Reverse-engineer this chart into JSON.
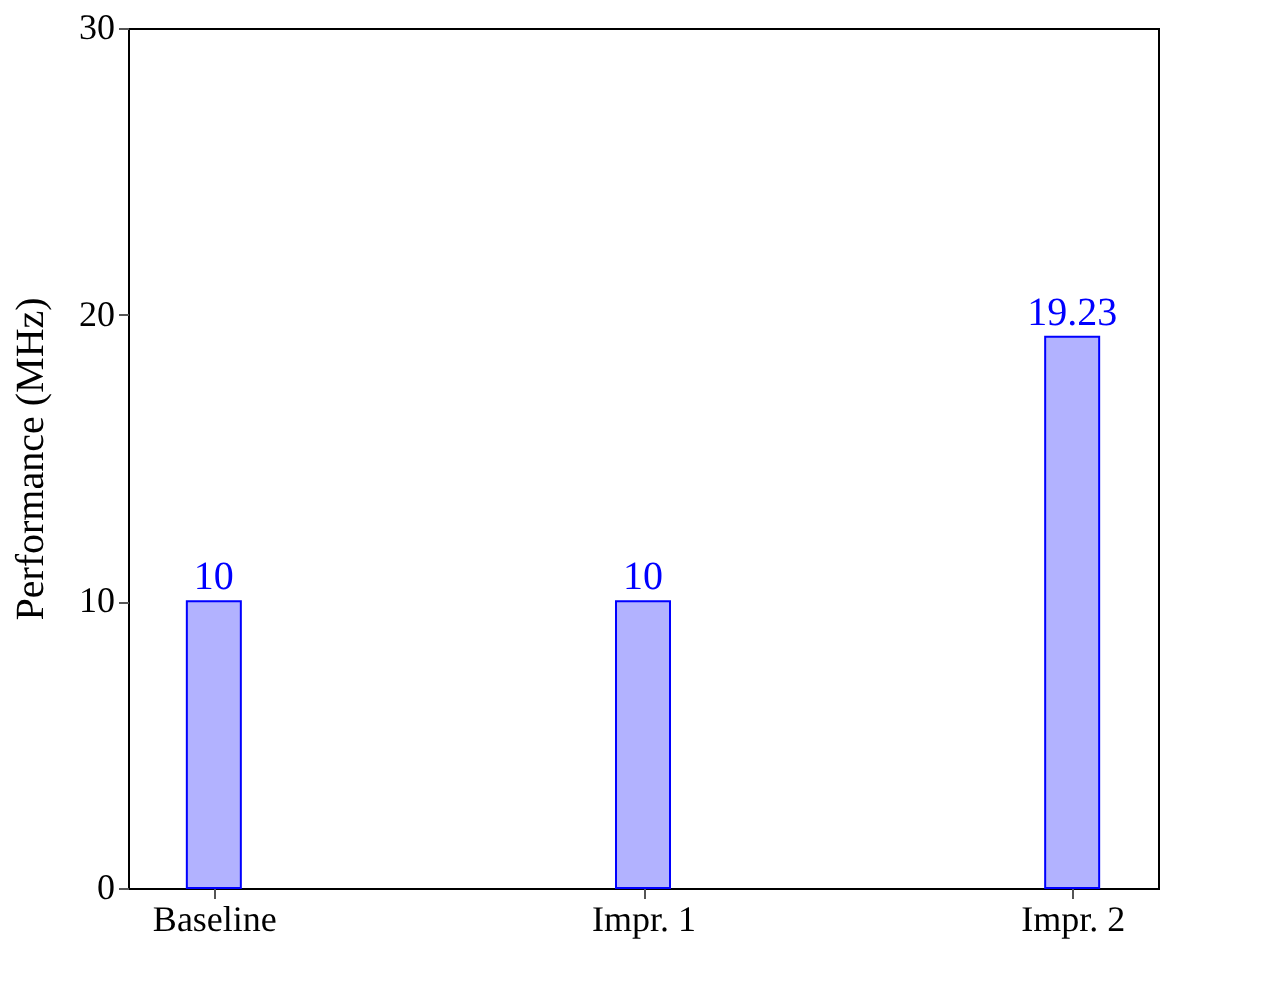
{
  "chart_data": {
    "type": "bar",
    "ylabel": "Performance (MHz)",
    "categories": [
      "Baseline",
      "Impr. 1",
      "Impr. 2"
    ],
    "series": [
      {
        "color": "#0000ff",
        "values": [
          10,
          10,
          19.23
        ]
      }
    ],
    "ylim": [
      0,
      30
    ],
    "yticks": [
      0,
      10,
      20,
      30
    ],
    "data_labels": true,
    "grid": false
  }
}
